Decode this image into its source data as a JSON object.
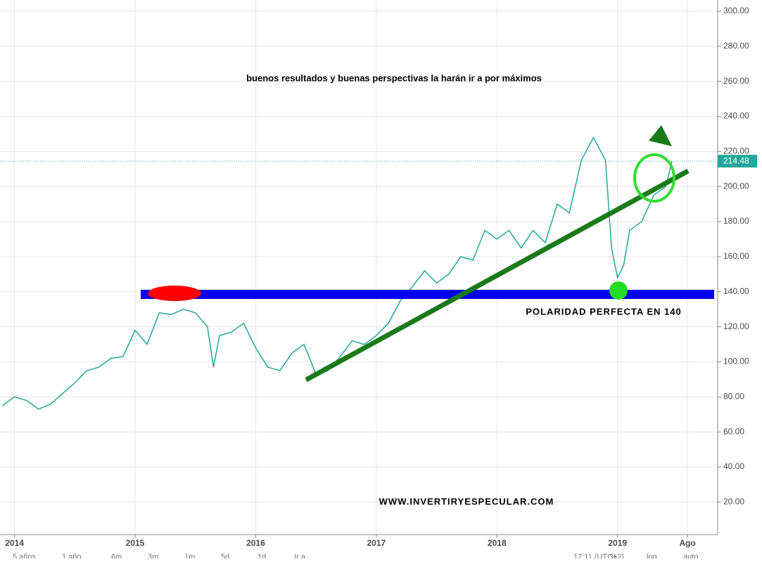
{
  "chart_data": {
    "type": "line",
    "title": "buenos resultados y buenas perspectivas la harán ir a por máximos",
    "annotations": [
      "POLARIDAD PERFECTA EN 140",
      "WWW.INVERTIRYESPECULAR.COM"
    ],
    "x": [
      2013.9,
      2014.0,
      2014.1,
      2014.2,
      2014.3,
      2014.4,
      2014.5,
      2014.6,
      2014.7,
      2014.8,
      2014.9,
      2015.0,
      2015.1,
      2015.2,
      2015.3,
      2015.4,
      2015.5,
      2015.6,
      2015.65,
      2015.7,
      2015.8,
      2015.9,
      2016.0,
      2016.1,
      2016.2,
      2016.3,
      2016.4,
      2016.5,
      2016.6,
      2016.7,
      2016.8,
      2016.9,
      2017.0,
      2017.1,
      2017.2,
      2017.3,
      2017.4,
      2017.5,
      2017.6,
      2017.7,
      2017.8,
      2017.9,
      2018.0,
      2018.1,
      2018.2,
      2018.3,
      2018.4,
      2018.5,
      2018.6,
      2018.7,
      2018.8,
      2018.9,
      2018.95,
      2019.0,
      2019.05,
      2019.1,
      2019.2,
      2019.3,
      2019.4,
      2019.45
    ],
    "values": [
      75,
      80,
      78,
      73,
      76,
      82,
      88,
      95,
      97,
      102,
      103,
      118,
      110,
      128,
      127,
      130,
      128,
      120,
      97,
      115,
      117,
      122,
      108,
      97,
      95,
      105,
      110,
      93,
      95,
      103,
      112,
      110,
      115,
      122,
      135,
      143,
      152,
      145,
      150,
      160,
      158,
      175,
      170,
      175,
      165,
      175,
      168,
      190,
      185,
      215,
      228,
      215,
      165,
      148,
      155,
      175,
      180,
      195,
      200,
      214.48
    ],
    "color": "#26a69a",
    "last_price": 214.48,
    "last_price_color": "#26a69a",
    "xlim": [
      2013.88,
      2019.83
    ],
    "xticks": [
      {
        "value": 2014,
        "label": "2014"
      },
      {
        "value": 2015,
        "label": "2015"
      },
      {
        "value": 2016,
        "label": "2016"
      },
      {
        "value": 2017,
        "label": "2017"
      },
      {
        "value": 2018,
        "label": "2018"
      },
      {
        "value": 2019,
        "label": "2019"
      },
      {
        "value": 2019.58,
        "label": "Ago"
      }
    ],
    "ylim": [
      1.5,
      306.4
    ],
    "yticks": [
      {
        "value": 20,
        "label": "20.00"
      },
      {
        "value": 40,
        "label": "40.00"
      },
      {
        "value": 60,
        "label": "60.00"
      },
      {
        "value": 80,
        "label": "80.00"
      },
      {
        "value": 100,
        "label": "100.00"
      },
      {
        "value": 120,
        "label": "120.00"
      },
      {
        "value": 140,
        "label": "140.00"
      },
      {
        "value": 160,
        "label": "160.00"
      },
      {
        "value": 180,
        "label": "180.00"
      },
      {
        "value": 200,
        "label": "200.00"
      },
      {
        "value": 220,
        "label": "220.00"
      },
      {
        "value": 240,
        "label": "240.00"
      },
      {
        "value": 260,
        "label": "260.00"
      },
      {
        "value": 280,
        "label": "280.00"
      },
      {
        "value": 300,
        "label": "300.00"
      }
    ],
    "grid": true,
    "toolbar": [
      "5 años",
      "1 año",
      "6m",
      "3m",
      "1m",
      "5d",
      "1d",
      "Ir a...",
      "17:11 (UTC+2)",
      "%",
      "log",
      "auto"
    ]
  }
}
